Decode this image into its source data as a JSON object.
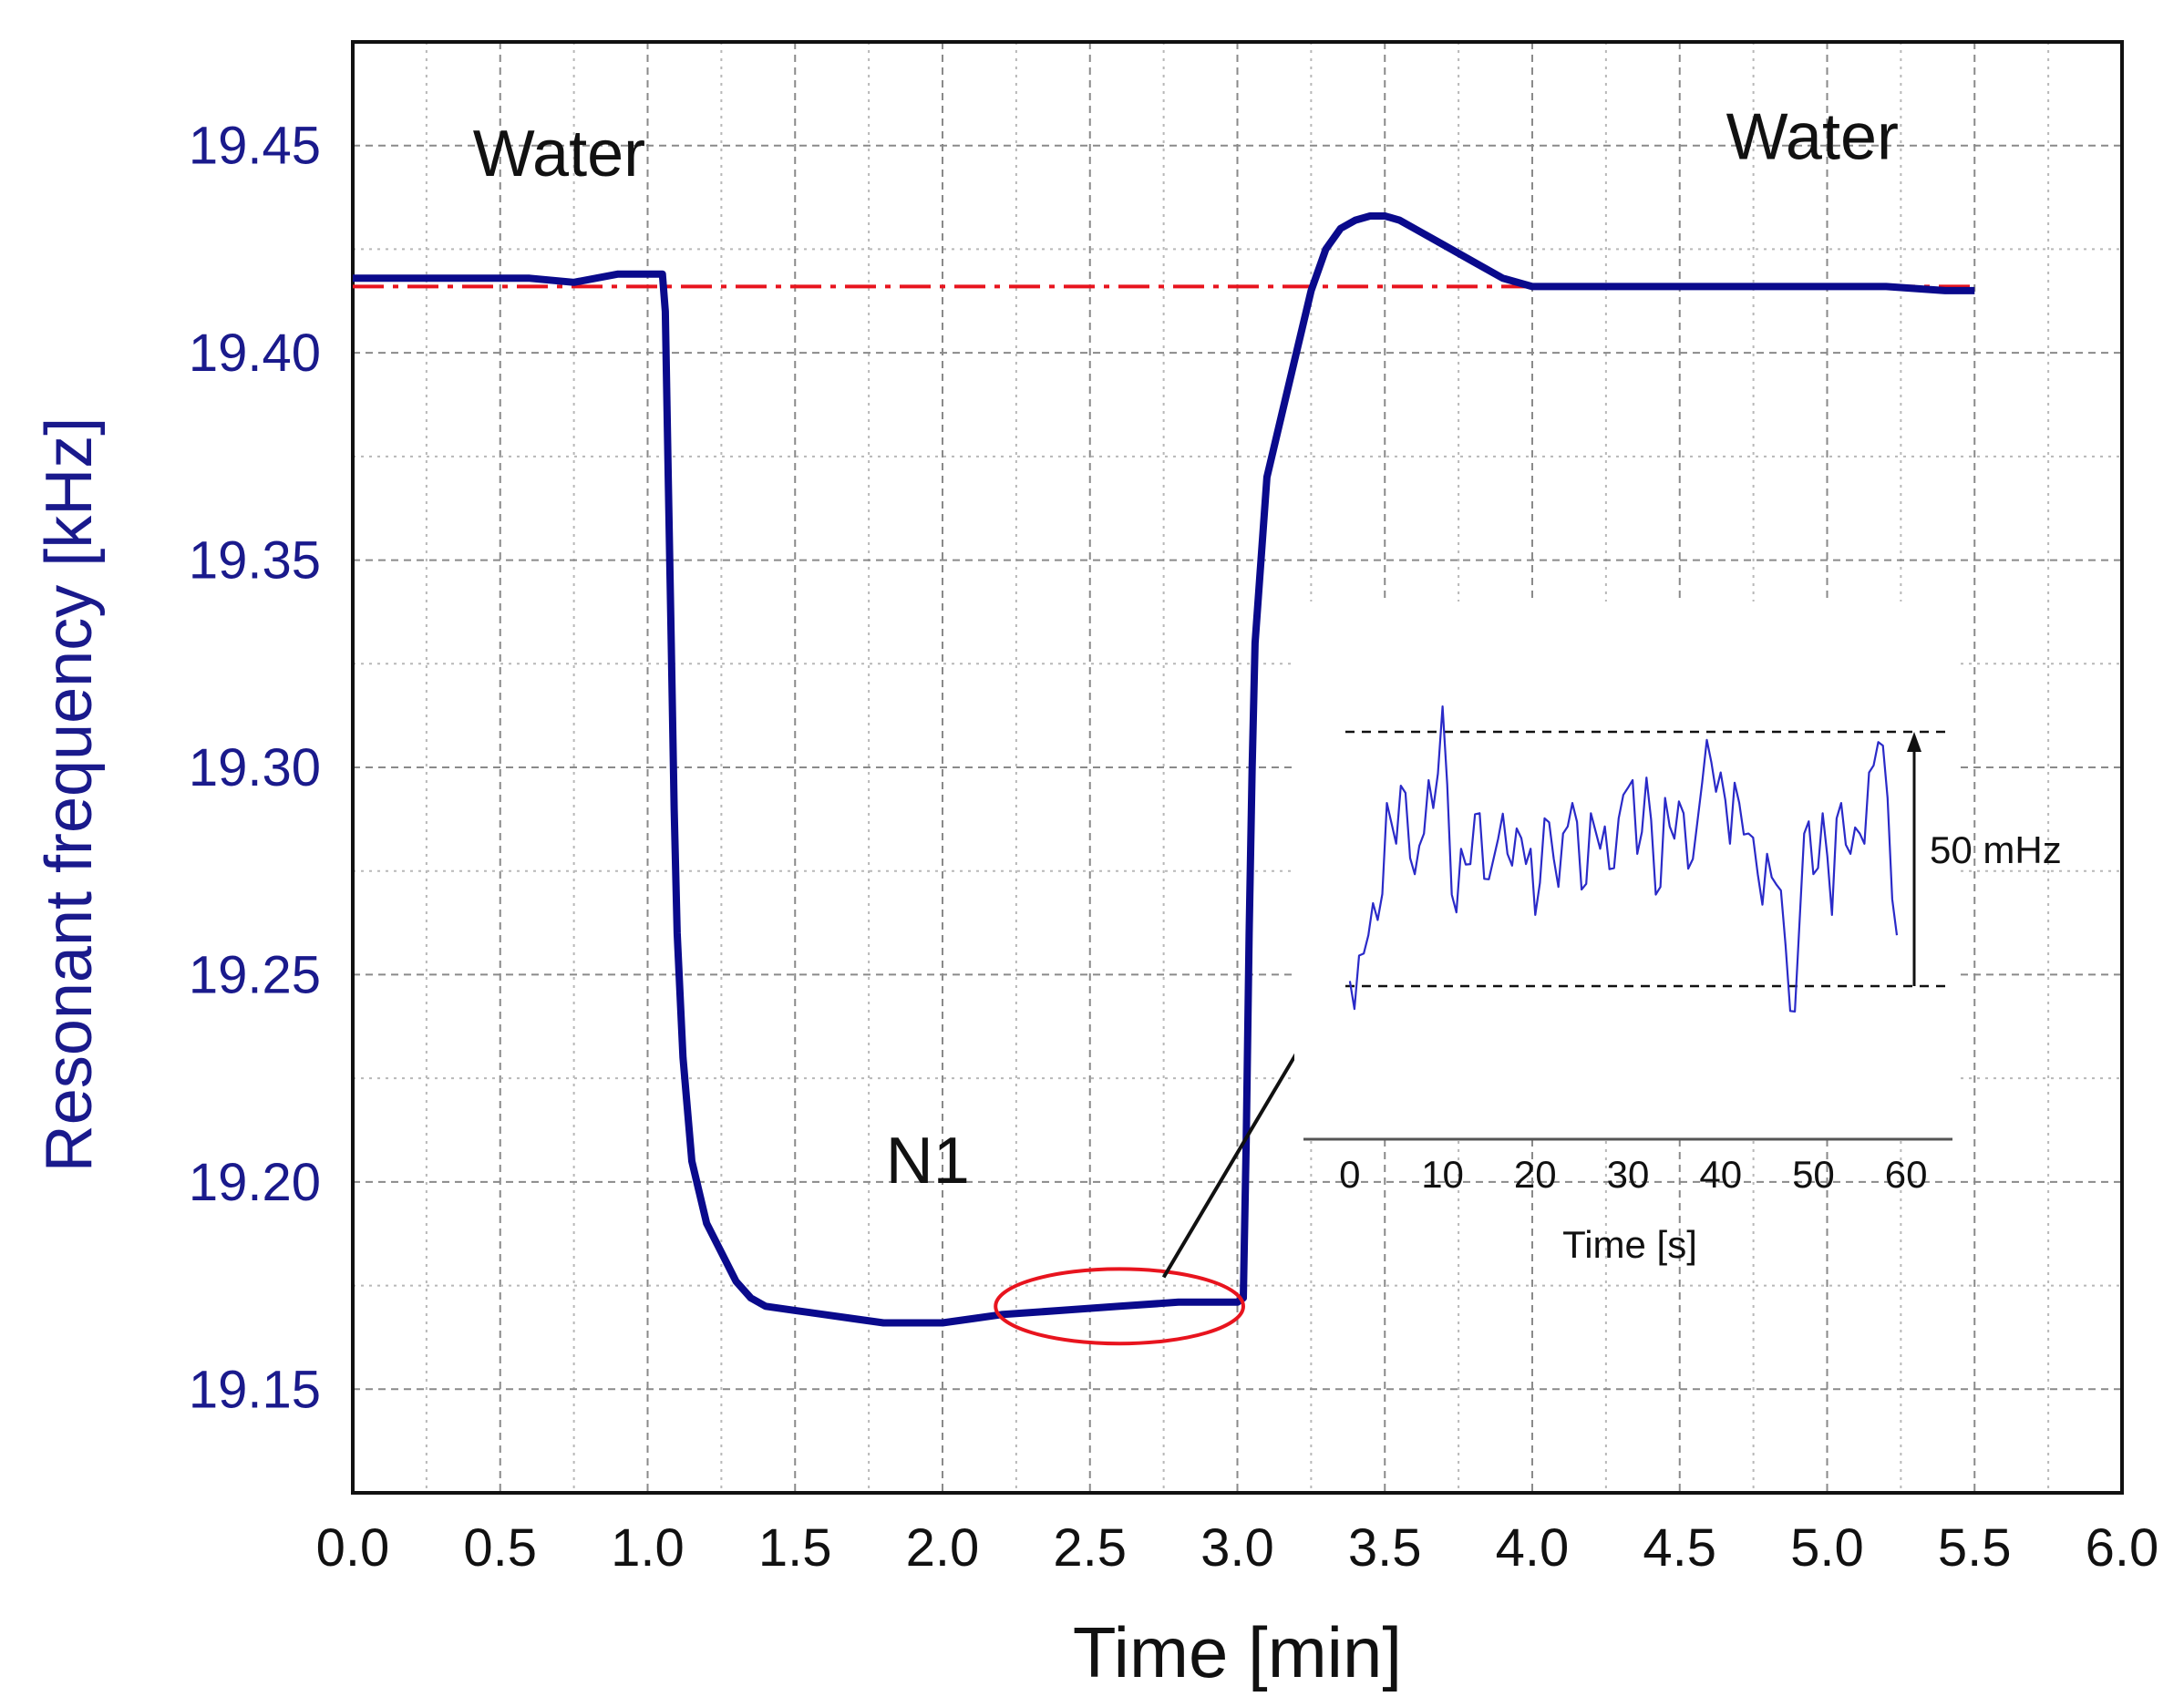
{
  "chart_data": {
    "type": "line",
    "title": "",
    "xlabel": "Time [min]",
    "ylabel": "Resonant frequency [kHz]",
    "xlim": [
      0.0,
      6.0
    ],
    "ylim": [
      19.125,
      19.475
    ],
    "xticks": [
      "0.0",
      "0.5",
      "1.0",
      "1.5",
      "2.0",
      "2.5",
      "3.0",
      "3.5",
      "4.0",
      "4.5",
      "5.0",
      "5.5",
      "6.0"
    ],
    "yticks": [
      "19.15",
      "19.20",
      "19.25",
      "19.30",
      "19.35",
      "19.40",
      "19.45"
    ],
    "grid": true,
    "colors": {
      "series": "#0a0a8c",
      "axis_text": "#1a1a8c",
      "baseline": "#e8141e",
      "highlight": "#e8141e",
      "inset": "#2a2ac8"
    },
    "series": [
      {
        "name": "Resonant frequency",
        "x": [
          0.0,
          0.3,
          0.6,
          0.75,
          0.9,
          1.0,
          1.05,
          1.06,
          1.07,
          1.08,
          1.09,
          1.1,
          1.12,
          1.15,
          1.2,
          1.25,
          1.3,
          1.35,
          1.4,
          1.5,
          1.6,
          1.7,
          1.8,
          1.9,
          2.0,
          2.1,
          2.2,
          2.4,
          2.6,
          2.8,
          3.0,
          3.02,
          3.03,
          3.04,
          3.05,
          3.06,
          3.08,
          3.1,
          3.15,
          3.2,
          3.25,
          3.3,
          3.35,
          3.4,
          3.45,
          3.5,
          3.55,
          3.6,
          3.7,
          3.8,
          3.9,
          4.0,
          4.2,
          4.5,
          4.8,
          5.0,
          5.2,
          5.4,
          5.5
        ],
        "y": [
          19.418,
          19.418,
          19.418,
          19.417,
          19.419,
          19.419,
          19.419,
          19.41,
          19.37,
          19.33,
          19.29,
          19.26,
          19.23,
          19.205,
          19.19,
          19.183,
          19.176,
          19.172,
          19.17,
          19.169,
          19.168,
          19.167,
          19.166,
          19.166,
          19.166,
          19.167,
          19.168,
          19.169,
          19.17,
          19.171,
          19.171,
          19.172,
          19.21,
          19.26,
          19.3,
          19.33,
          19.35,
          19.37,
          19.385,
          19.4,
          19.415,
          19.425,
          19.43,
          19.432,
          19.433,
          19.433,
          19.432,
          19.43,
          19.426,
          19.422,
          19.418,
          19.416,
          19.416,
          19.416,
          19.416,
          19.416,
          19.416,
          19.415,
          19.415
        ]
      }
    ],
    "reference_line": {
      "y": 19.416,
      "style": "dash-dot"
    },
    "annotations": [
      {
        "text": "Water",
        "x": 0.7,
        "y": 19.448
      },
      {
        "text": "Water",
        "x": 4.95,
        "y": 19.452
      },
      {
        "text": "N1",
        "x": 1.95,
        "y": 19.205
      }
    ],
    "highlight_ellipse": {
      "cx": 2.6,
      "cy": 19.17,
      "rx": 0.42,
      "ry": 0.009
    },
    "arrow": {
      "from": [
        2.75,
        19.177
      ],
      "to": [
        3.3,
        19.243
      ]
    },
    "inset": {
      "type": "line",
      "xlabel": "Time [s]",
      "xlim": [
        -5,
        65
      ],
      "xticks": [
        "0",
        "10",
        "20",
        "30",
        "40",
        "50",
        "60"
      ],
      "bracket_label": "50 mHz",
      "bracket_range_mhz": 50,
      "x": [
        0,
        1,
        2,
        3,
        4,
        5,
        6,
        7,
        8,
        9,
        10,
        11,
        12,
        13,
        14,
        15,
        16,
        17,
        18,
        19,
        20,
        21,
        22,
        23,
        24,
        25,
        26,
        27,
        28,
        29,
        30,
        31,
        32,
        33,
        34,
        35,
        36,
        37,
        38,
        39,
        40,
        41,
        42,
        43,
        44,
        45,
        46,
        47,
        48,
        49,
        50,
        51,
        52,
        53,
        54,
        55,
        56,
        57,
        58,
        59
      ],
      "y_mhz": [
        1,
        6,
        10,
        13,
        36,
        28,
        38,
        22,
        30,
        35,
        55,
        18,
        27,
        24,
        34,
        21,
        29,
        26,
        31,
        24,
        14,
        33,
        25,
        30,
        36,
        19,
        34,
        27,
        23,
        33,
        39,
        26,
        41,
        18,
        37,
        29,
        34,
        25,
        40,
        44,
        42,
        28,
        36,
        30,
        22,
        26,
        20,
        8,
        -5,
        30,
        22,
        34,
        14,
        36,
        26,
        30,
        42,
        48,
        37,
        10
      ]
    }
  }
}
